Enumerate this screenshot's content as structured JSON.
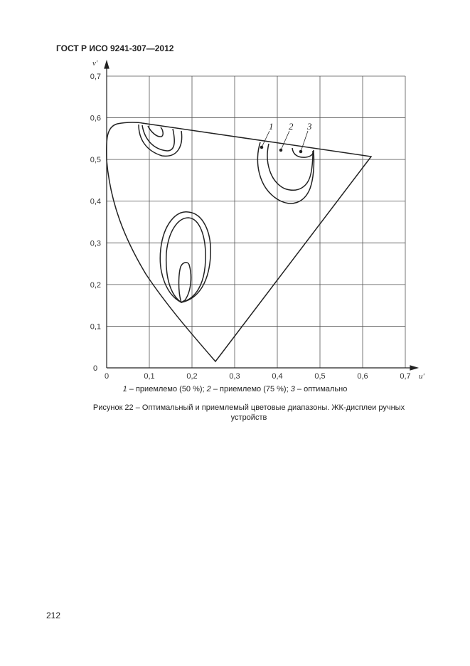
{
  "header": {
    "title": "ГОСТ Р ИСО 9241-307—2012"
  },
  "figure": {
    "x_axis_label": "u'",
    "y_axis_label": "v'",
    "x_ticks": [
      "0",
      "0,1",
      "0,2",
      "0,3",
      "0,4",
      "0,5",
      "0,6",
      "0,7"
    ],
    "y_ticks": [
      "0",
      "0,1",
      "0,2",
      "0,3",
      "0,4",
      "0,5",
      "0,6",
      "0,7"
    ],
    "curve_labels": [
      "1",
      "2",
      "3"
    ],
    "legend": {
      "n1": "1",
      "t1": " – приемлемо (50 %); ",
      "n2": "2",
      "t2": " – приемлемо (75 %); ",
      "n3": "3",
      "t3": " – оптимально"
    },
    "caption": "Рисунок 22 – Оптимальный и приемлемый цветовые диапазоны. ЖК-дисплеи ручных устройств"
  },
  "chart_data": {
    "type": "diagram",
    "xlabel": "u'",
    "ylabel": "v'",
    "xlim": [
      0,
      0.7
    ],
    "ylim": [
      0,
      0.7
    ],
    "grid": true
  },
  "footer": {
    "page_number": "212"
  }
}
